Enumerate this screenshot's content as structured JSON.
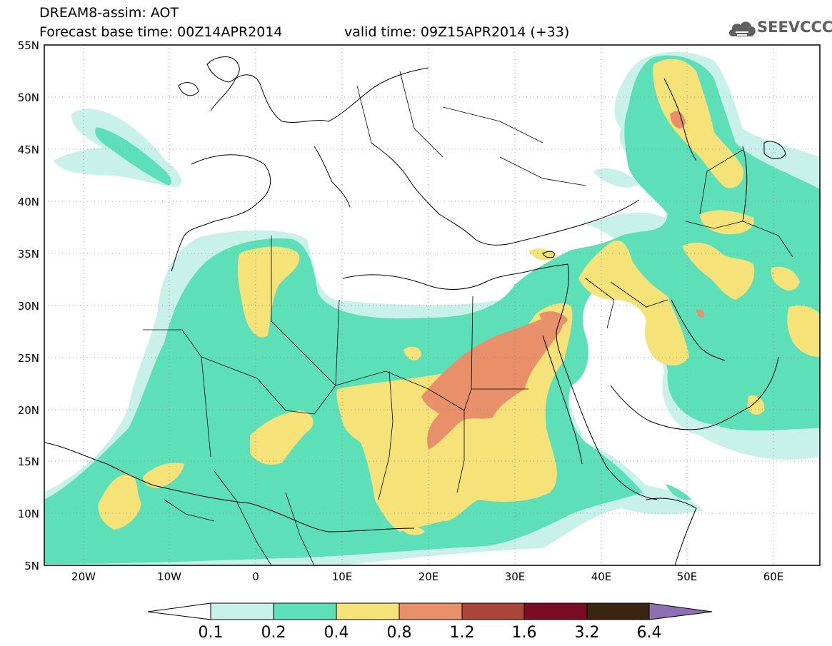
{
  "header": {
    "title": "DREAM8-assim: AOT",
    "base_time": "Forecast base time: 00Z14APR2014",
    "valid_time": "valid time: 09Z15APR2014 (+33)",
    "logo_text": "SEEVCCC"
  },
  "map": {
    "lat_labels": [
      "55N",
      "50N",
      "45N",
      "40N",
      "35N",
      "30N",
      "25N",
      "20N",
      "15N",
      "10N",
      "5N"
    ],
    "lon_labels": [
      "20W",
      "10W",
      "0",
      "10E",
      "20E",
      "30E",
      "40E",
      "50E",
      "60E"
    ],
    "extent": {
      "lon": [
        -25,
        65
      ],
      "lat": [
        5,
        55
      ]
    }
  },
  "colorbar": {
    "levels": [
      "0.1",
      "0.2",
      "0.4",
      "0.8",
      "1.2",
      "1.6",
      "3.2",
      "6.4"
    ],
    "colors": [
      "#ffffff",
      "#c8f1ea",
      "#5de0b8",
      "#f5e37a",
      "#e8906a",
      "#a9483a",
      "#7a0c24",
      "#3a2512",
      "#8f6fb3"
    ]
  }
}
